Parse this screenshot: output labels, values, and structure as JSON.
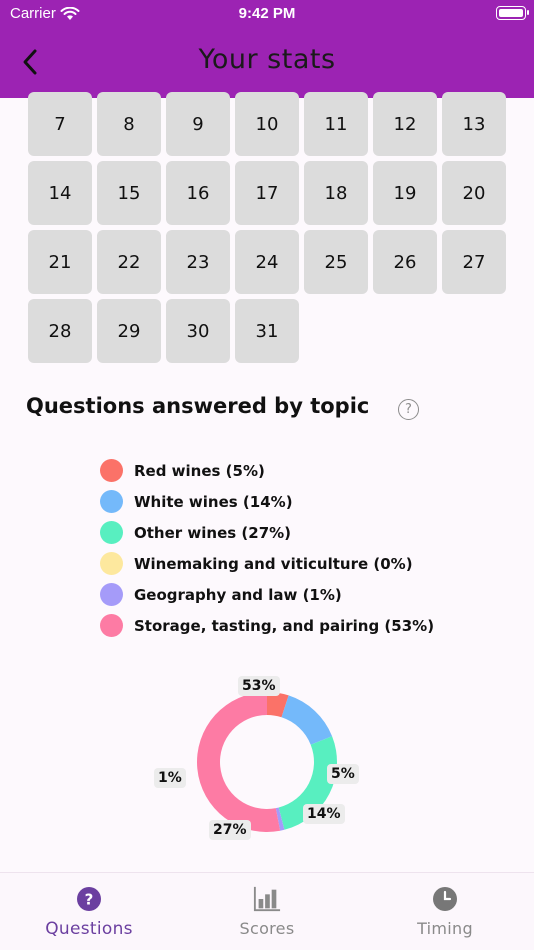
{
  "status_bar": {
    "carrier": "Carrier",
    "time": "9:42 PM"
  },
  "header": {
    "title": "Your stats"
  },
  "calendar": {
    "days": [
      "7",
      "8",
      "9",
      "10",
      "11",
      "12",
      "13",
      "14",
      "15",
      "16",
      "17",
      "18",
      "19",
      "20",
      "21",
      "22",
      "23",
      "24",
      "25",
      "26",
      "27",
      "28",
      "29",
      "30",
      "31"
    ]
  },
  "topics": {
    "title": "Questions answered by topic",
    "help": "?",
    "legend": [
      {
        "label": "Red wines (5%)",
        "color": "#fb7268"
      },
      {
        "label": "White wines (14%)",
        "color": "#74b9fa"
      },
      {
        "label": "Other wines (27%)",
        "color": "#58efc0"
      },
      {
        "label": "Winemaking and viticulture (0%)",
        "color": "#fde89e"
      },
      {
        "label": "Geography and law (1%)",
        "color": "#a59bf9"
      },
      {
        "label": "Storage, tasting, and pairing (53%)",
        "color": "#fd7ba4"
      }
    ]
  },
  "chart_data": {
    "type": "pie",
    "categories": [
      "Red wines",
      "White wines",
      "Other wines",
      "Winemaking and viticulture",
      "Geography and law",
      "Storage, tasting, and pairing"
    ],
    "values": [
      5,
      14,
      27,
      0,
      1,
      53
    ],
    "colors": [
      "#fb7268",
      "#74b9fa",
      "#58efc0",
      "#fde89e",
      "#a59bf9",
      "#fd7ba4"
    ],
    "data_labels": [
      "5%",
      "14%",
      "27%",
      "",
      "1%",
      "53%"
    ],
    "donut": true,
    "start_angle_deg": 90,
    "title": ""
  },
  "tabbar": {
    "tabs": [
      {
        "label": "Questions",
        "icon": "question-circle-icon",
        "active": true
      },
      {
        "label": "Scores",
        "icon": "bar-chart-icon",
        "active": false
      },
      {
        "label": "Timing",
        "icon": "clock-icon",
        "active": false
      }
    ]
  }
}
